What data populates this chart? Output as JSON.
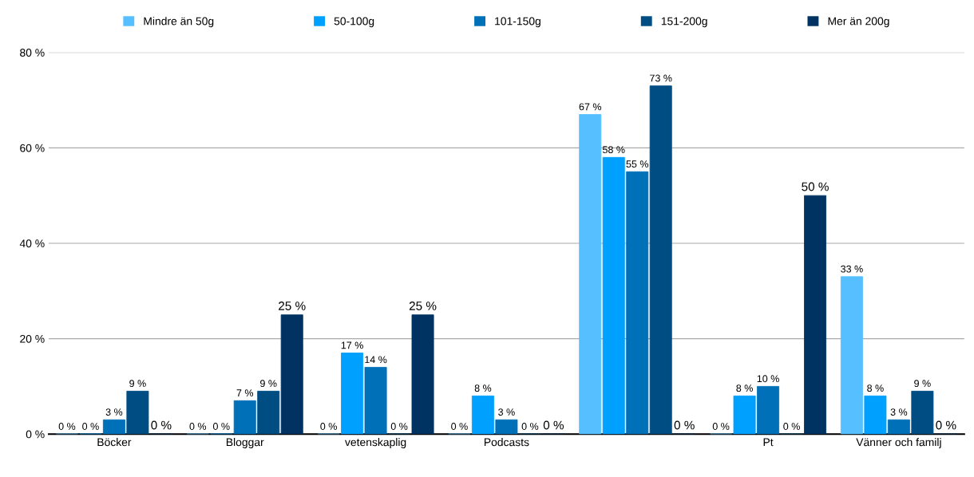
{
  "chart_data": {
    "type": "bar",
    "categories": [
      "Böcker",
      "Bloggar",
      "vetenskaplig",
      "Podcasts",
      null,
      "Pt",
      "Vänner och familj"
    ],
    "series": [
      {
        "name": "Mindre än 50g",
        "color": "#55bfff",
        "values": [
          0,
          0,
          0,
          0,
          67,
          0,
          33
        ],
        "value_labels": [
          "0 %",
          "0 %",
          "0 %",
          "0 %",
          "67 %",
          "0 %",
          "33 %"
        ]
      },
      {
        "name": "50-100g",
        "color": "#00a0ff",
        "values": [
          0,
          0,
          17,
          8,
          58,
          8,
          8
        ],
        "value_labels": [
          "0 %",
          "0 %",
          "17 %",
          "8 %",
          "58 %",
          "8 %",
          "8 %"
        ]
      },
      {
        "name": "101-150g",
        "color": "#0070b8",
        "values": [
          3,
          7,
          14,
          3,
          55,
          10,
          3
        ],
        "value_labels": [
          "3 %",
          "7 %",
          "14 %",
          "3 %",
          "55 %",
          "10 %",
          "3 %"
        ]
      },
      {
        "name": "151-200g",
        "color": "#004d84",
        "values": [
          9,
          9,
          0,
          0,
          73,
          0,
          9
        ],
        "value_labels": [
          "9 %",
          "9 %",
          "0 %",
          "0 %",
          "73 %",
          "0 %",
          "9 %"
        ]
      },
      {
        "name": "Mer än 200g",
        "color": "#003362",
        "values": [
          0,
          25,
          25,
          0,
          0,
          50,
          0
        ],
        "value_labels": [
          "0 %",
          "25 %",
          "25 %",
          "0 %",
          "0 %",
          "50 %",
          "0 %"
        ]
      }
    ],
    "ylim": [
      0,
      80
    ],
    "yticks": [
      {
        "value": 0,
        "label": "0 %"
      },
      {
        "value": 20,
        "label": "20 %"
      },
      {
        "value": 40,
        "label": "40 %"
      },
      {
        "value": 60,
        "label": "60 %"
      },
      {
        "value": 80,
        "label": "80 %"
      }
    ],
    "grid": "y",
    "legend": "top"
  }
}
